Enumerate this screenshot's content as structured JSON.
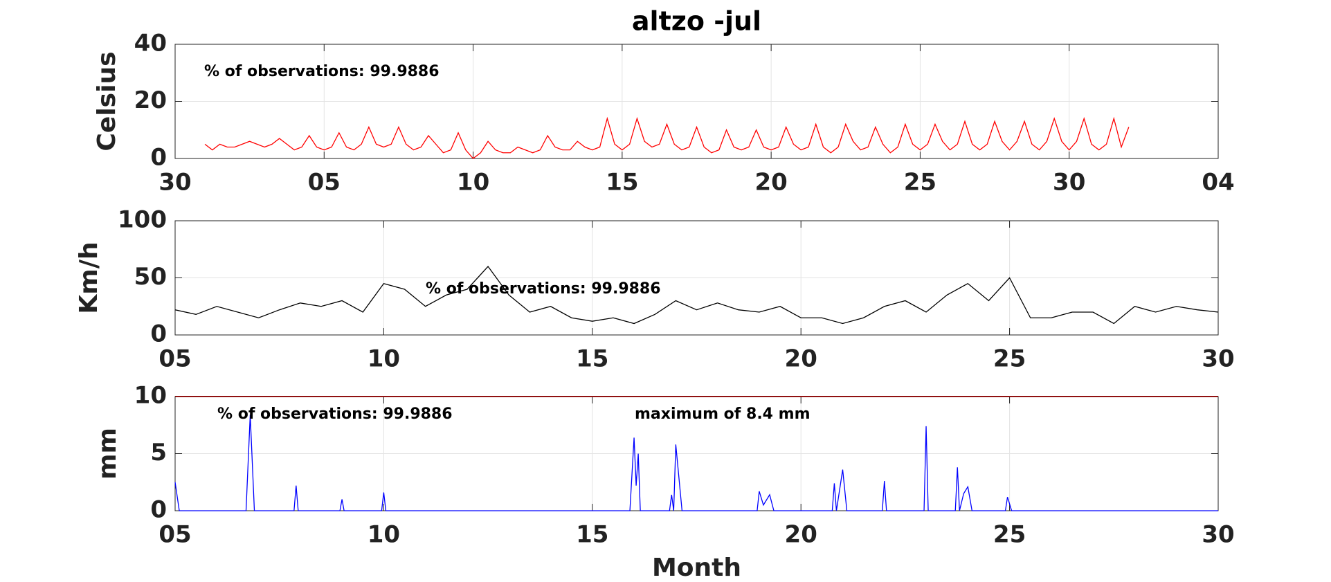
{
  "chart_data": [
    {
      "type": "line",
      "title": "altzo -jul",
      "ylabel": "Celsius",
      "xlim": [
        0,
        35
      ],
      "xticks": [
        {
          "value": 0,
          "label": "30"
        },
        {
          "value": 5,
          "label": "05"
        },
        10,
        15,
        20,
        25,
        30,
        {
          "value": 35,
          "label": "04"
        }
      ],
      "ylim": [
        0,
        40
      ],
      "yticks": [
        0,
        20,
        40
      ],
      "grid": true,
      "annotations": [
        "% of observations: 99.9886"
      ],
      "series": [
        {
          "color": "#ff0000",
          "x": [
            1,
            1.25,
            1.5,
            1.75,
            2,
            2.25,
            2.5,
            2.75,
            3,
            3.25,
            3.5,
            3.75,
            4,
            4.25,
            4.5,
            4.75,
            5,
            5.25,
            5.5,
            5.75,
            6,
            6.25,
            6.5,
            6.75,
            7,
            7.25,
            7.5,
            7.75,
            8,
            8.25,
            8.5,
            8.75,
            9,
            9.25,
            9.5,
            9.75,
            10,
            10.25,
            10.5,
            10.75,
            11,
            11.25,
            11.5,
            11.75,
            12,
            12.25,
            12.5,
            12.75,
            13,
            13.25,
            13.5,
            13.75,
            14,
            14.25,
            14.5,
            14.75,
            15,
            15.25,
            15.5,
            15.75,
            16,
            16.25,
            16.5,
            16.75,
            17,
            17.25,
            17.5,
            17.75,
            18,
            18.25,
            18.5,
            18.75,
            19,
            19.25,
            19.5,
            19.75,
            20,
            20.25,
            20.5,
            20.75,
            21,
            21.25,
            21.5,
            21.75,
            22,
            22.25,
            22.5,
            22.75,
            23,
            23.25,
            23.5,
            23.75,
            24,
            24.25,
            24.5,
            24.75,
            25,
            25.25,
            25.5,
            25.75,
            26,
            26.25,
            26.5,
            26.75,
            27,
            27.25,
            27.5,
            27.75,
            28,
            28.25,
            28.5,
            28.75,
            29,
            29.25,
            29.5,
            29.75,
            30,
            30.25,
            30.5,
            30.75,
            31,
            31.25,
            31.5,
            31.75,
            32
          ],
          "values": [
            5,
            3,
            5,
            4,
            4,
            5,
            6,
            5,
            4,
            5,
            7,
            5,
            3,
            4,
            8,
            4,
            3,
            4,
            9,
            4,
            3,
            5,
            11,
            5,
            4,
            5,
            11,
            5,
            3,
            4,
            8,
            5,
            2,
            3,
            9,
            3,
            0,
            2,
            6,
            3,
            2,
            2,
            4,
            3,
            2,
            3,
            8,
            4,
            3,
            3,
            6,
            4,
            3,
            4,
            14,
            5,
            3,
            5,
            14,
            6,
            4,
            5,
            12,
            5,
            3,
            4,
            11,
            4,
            2,
            3,
            10,
            4,
            3,
            4,
            10,
            4,
            3,
            4,
            11,
            5,
            3,
            4,
            12,
            4,
            2,
            4,
            12,
            6,
            3,
            4,
            11,
            5,
            2,
            4,
            12,
            5,
            3,
            5,
            12,
            6,
            3,
            5,
            13,
            5,
            3,
            5,
            13,
            6,
            3,
            6,
            13,
            5,
            3,
            6,
            14,
            6,
            3,
            6,
            14,
            5,
            3,
            5,
            14,
            4,
            11
          ]
        }
      ]
    },
    {
      "type": "line",
      "ylabel": "Km/h",
      "xlim": [
        5,
        30
      ],
      "xticks": [
        {
          "value": 5,
          "label": "05"
        },
        10,
        15,
        20,
        25,
        30
      ],
      "ylim": [
        0,
        100
      ],
      "yticks": [
        0,
        50,
        100
      ],
      "grid": true,
      "annotations": [
        "% of observations: 99.9886"
      ],
      "series": [
        {
          "color": "#000000",
          "x": [
            5,
            5.5,
            6,
            6.5,
            7,
            7.5,
            8,
            8.5,
            9,
            9.5,
            10,
            10.5,
            11,
            11.5,
            12,
            12.5,
            13,
            13.5,
            14,
            14.5,
            15,
            15.5,
            16,
            16.5,
            17,
            17.5,
            18,
            18.5,
            19,
            19.5,
            20,
            20.5,
            21,
            21.5,
            22,
            22.5,
            23,
            23.5,
            24,
            24.5,
            25,
            25.5,
            26,
            26.5,
            27,
            27.5,
            28,
            28.5,
            29,
            29.5,
            30
          ],
          "values": [
            22,
            18,
            25,
            20,
            15,
            22,
            28,
            25,
            30,
            20,
            45,
            40,
            25,
            35,
            40,
            60,
            35,
            20,
            25,
            15,
            12,
            15,
            10,
            18,
            30,
            22,
            28,
            22,
            20,
            25,
            15,
            15,
            10,
            15,
            25,
            30,
            20,
            35,
            45,
            30,
            50,
            15,
            15,
            20,
            20,
            10,
            25,
            20,
            25,
            22,
            20
          ]
        }
      ]
    },
    {
      "type": "line",
      "ylabel": "mm",
      "xlabel": "Month",
      "xlim": [
        5,
        30
      ],
      "xticks": [
        {
          "value": 5,
          "label": "05"
        },
        10,
        15,
        20,
        25,
        30
      ],
      "ylim": [
        0,
        10
      ],
      "yticks": [
        0,
        5,
        10
      ],
      "grid": true,
      "annotations": [
        "% of observations: 99.9886",
        "maximum of 8.4 mm"
      ],
      "hlines": [
        {
          "value": 10,
          "color": "#ff0000"
        }
      ],
      "series": [
        {
          "color": "#0000ff",
          "x": [
            5,
            5.1,
            6.7,
            6.8,
            6.9,
            7.85,
            7.9,
            7.95,
            8.95,
            9,
            9.05,
            9.95,
            10,
            10.05,
            15.9,
            16,
            16.05,
            16.1,
            16.15,
            16.85,
            16.9,
            16.95,
            17,
            17.15,
            18.95,
            19,
            19.1,
            19.25,
            19.35,
            20.75,
            20.8,
            20.85,
            21,
            21.1,
            21.95,
            22,
            22.05,
            22.95,
            23,
            23.05,
            23.7,
            23.75,
            23.8,
            23.9,
            24,
            24.1,
            24.9,
            24.95,
            25.05,
            30
          ],
          "values": [
            2.5,
            0,
            0,
            8.4,
            0,
            0,
            2.2,
            0,
            0,
            1,
            0,
            0,
            1.6,
            0,
            0,
            6.4,
            2.2,
            5,
            0,
            0,
            1.4,
            0,
            5.8,
            0,
            0,
            1.7,
            0.5,
            1.4,
            0,
            0,
            2.4,
            0,
            3.6,
            0,
            0,
            2.6,
            0,
            0,
            7.4,
            0,
            0,
            3.8,
            0,
            1.5,
            2.1,
            0,
            0,
            1.2,
            0,
            0
          ]
        }
      ]
    }
  ]
}
